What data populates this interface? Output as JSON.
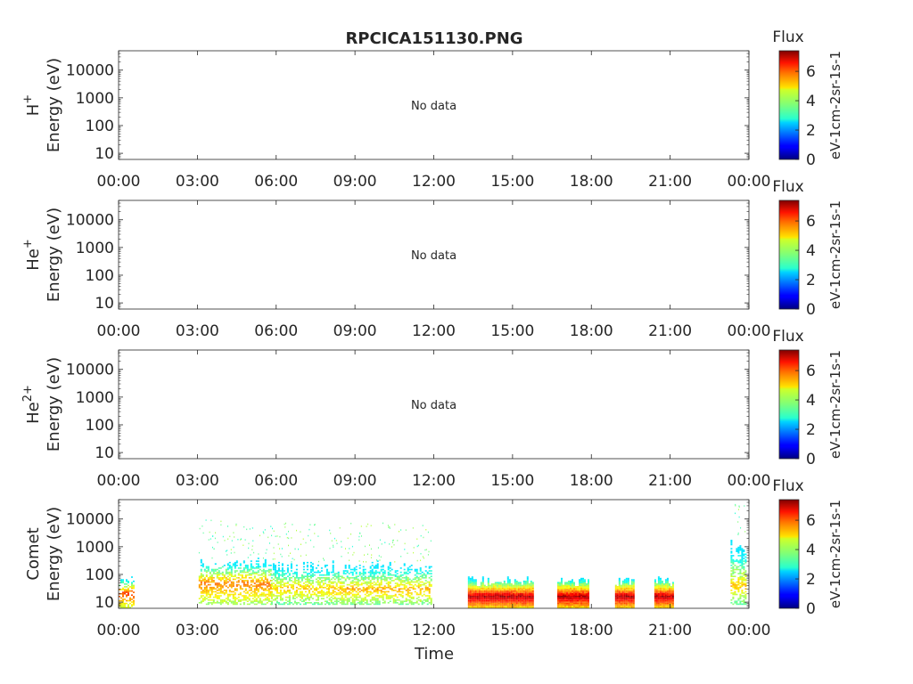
{
  "figure": {
    "title": "RPCICA151130.PNG",
    "xlabel": "Time"
  },
  "chart_data": [
    {
      "type": "heatmap",
      "panel": "H+",
      "ylabel_species": "H",
      "ylabel_sup": "+",
      "ylabel_unit": "Energy (eV)",
      "yscale": "log",
      "ylim": [
        6,
        50000
      ],
      "yticks": [
        "10",
        "100",
        "1000",
        "10000"
      ],
      "xticks": [
        "00:00",
        "03:00",
        "06:00",
        "09:00",
        "12:00",
        "15:00",
        "18:00",
        "21:00",
        "00:00"
      ],
      "xlim_hours": [
        0,
        24
      ],
      "annotation": "No data",
      "colorbar": {
        "title": "Flux",
        "label": "eV-1cm-2sr-1s-1",
        "ticks": [
          "0",
          "2",
          "4",
          "6"
        ],
        "range": [
          0,
          7.4
        ],
        "colormap": "jet"
      },
      "blocks": []
    },
    {
      "type": "heatmap",
      "panel": "He+",
      "ylabel_species": "He",
      "ylabel_sup": "+",
      "ylabel_unit": "Energy (eV)",
      "yscale": "log",
      "ylim": [
        6,
        50000
      ],
      "yticks": [
        "10",
        "100",
        "1000",
        "10000"
      ],
      "xticks": [
        "00:00",
        "03:00",
        "06:00",
        "09:00",
        "12:00",
        "15:00",
        "18:00",
        "21:00",
        "00:00"
      ],
      "xlim_hours": [
        0,
        24
      ],
      "annotation": "No data",
      "colorbar": {
        "title": "Flux",
        "label": "eV-1cm-2sr-1s-1",
        "ticks": [
          "0",
          "2",
          "4",
          "6"
        ],
        "range": [
          0,
          7.4
        ],
        "colormap": "jet"
      },
      "blocks": []
    },
    {
      "type": "heatmap",
      "panel": "He2+",
      "ylabel_species": "He",
      "ylabel_sup": "2+",
      "ylabel_unit": "Energy (eV)",
      "yscale": "log",
      "ylim": [
        6,
        50000
      ],
      "yticks": [
        "10",
        "100",
        "1000",
        "10000"
      ],
      "xticks": [
        "00:00",
        "03:00",
        "06:00",
        "09:00",
        "12:00",
        "15:00",
        "18:00",
        "21:00",
        "00:00"
      ],
      "xlim_hours": [
        0,
        24
      ],
      "annotation": "No data",
      "colorbar": {
        "title": "Flux",
        "label": "eV-1cm-2sr-1s-1",
        "ticks": [
          "0",
          "2",
          "4",
          "6"
        ],
        "range": [
          0,
          7.4
        ],
        "colormap": "jet"
      },
      "blocks": []
    },
    {
      "type": "heatmap",
      "panel": "Comet",
      "ylabel_species": "Comet",
      "ylabel_sup": "",
      "ylabel_unit": "Energy (eV)",
      "yscale": "log",
      "ylim": [
        6,
        50000
      ],
      "yticks": [
        "10",
        "100",
        "1000",
        "10000"
      ],
      "xticks": [
        "00:00",
        "03:00",
        "06:00",
        "09:00",
        "12:00",
        "15:00",
        "18:00",
        "21:00",
        "00:00"
      ],
      "xlim_hours": [
        0,
        24
      ],
      "annotation": "",
      "colorbar": {
        "title": "Flux",
        "label": "eV-1cm-2sr-1s-1",
        "ticks": [
          "0",
          "2",
          "4",
          "6"
        ],
        "range": [
          0,
          7.4
        ],
        "colormap": "jet"
      },
      "blocks": [
        {
          "t_start": 0.0,
          "t_end": 0.6,
          "e_low": 6,
          "e_high": 80,
          "e_peak": 20,
          "peak_flux": 6.0
        },
        {
          "t_start": 3.05,
          "t_end": 5.8,
          "e_low": 8,
          "e_high": 400,
          "e_peak": 45,
          "peak_flux": 5.6
        },
        {
          "t_start": 5.8,
          "t_end": 8.0,
          "e_low": 8,
          "e_high": 300,
          "e_peak": 30,
          "peak_flux": 5.0
        },
        {
          "t_start": 8.0,
          "t_end": 11.9,
          "e_low": 8,
          "e_high": 300,
          "e_peak": 28,
          "peak_flux": 5.2
        },
        {
          "t_start": 13.3,
          "t_end": 15.8,
          "e_low": 6,
          "e_high": 80,
          "e_peak": 15,
          "peak_flux": 7.0
        },
        {
          "t_start": 16.7,
          "t_end": 17.9,
          "e_low": 6,
          "e_high": 80,
          "e_peak": 15,
          "peak_flux": 7.0
        },
        {
          "t_start": 18.9,
          "t_end": 19.6,
          "e_low": 6,
          "e_high": 80,
          "e_peak": 15,
          "peak_flux": 7.0
        },
        {
          "t_start": 20.4,
          "t_end": 21.1,
          "e_low": 6,
          "e_high": 80,
          "e_peak": 15,
          "peak_flux": 7.0
        },
        {
          "t_start": 23.3,
          "t_end": 23.85,
          "e_low": 8,
          "e_high": 2000,
          "e_peak": 35,
          "peak_flux": 5.0
        }
      ]
    }
  ]
}
